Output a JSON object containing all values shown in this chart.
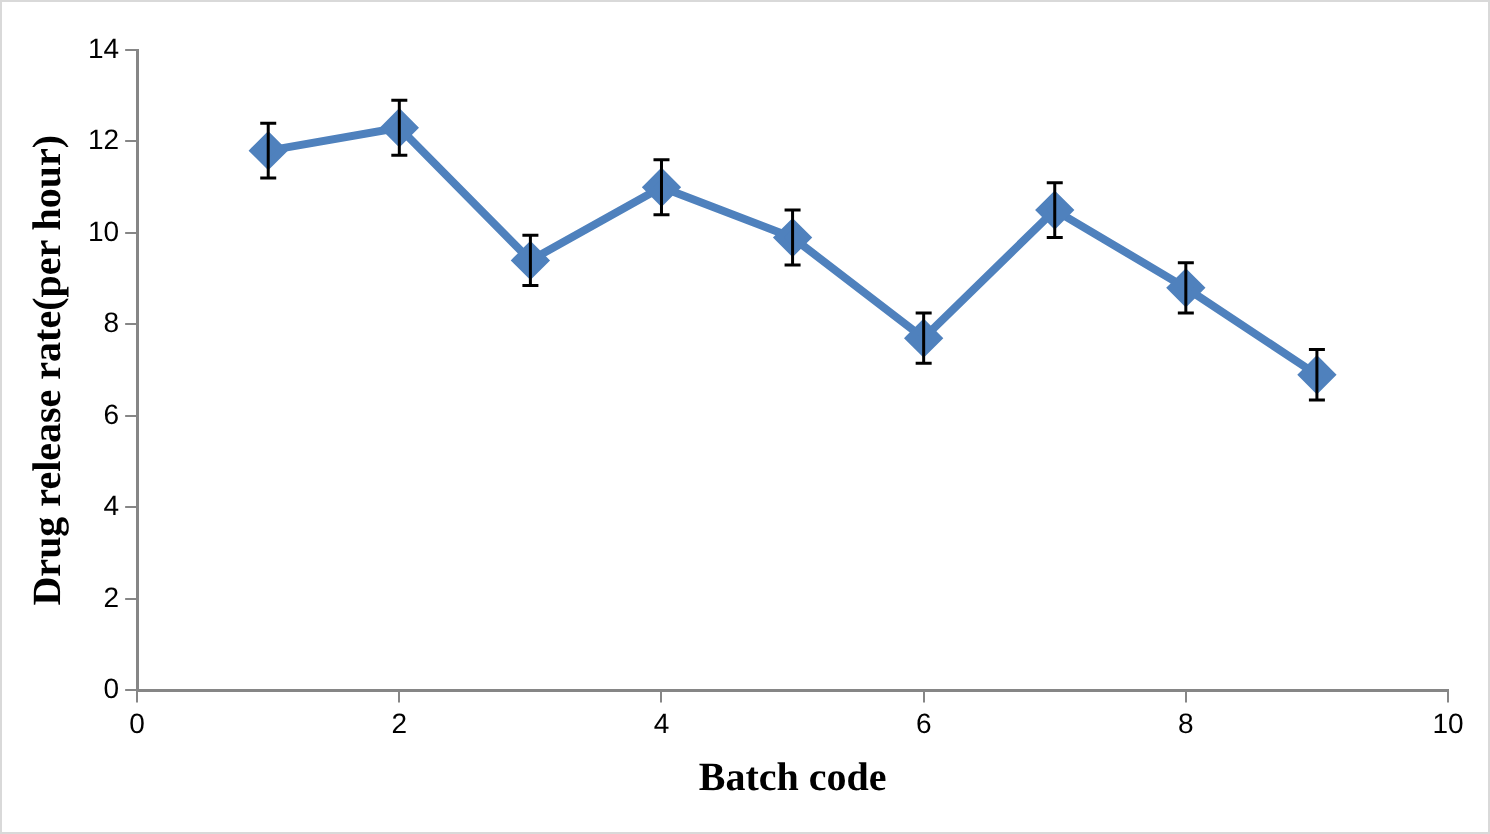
{
  "chart_data": {
    "type": "line",
    "xlabel": "Batch code",
    "ylabel": "Drug release rate(per hour)",
    "x": [
      1,
      2,
      3,
      4,
      5,
      6,
      7,
      8,
      9
    ],
    "series": [
      {
        "color": "#4f81bd",
        "values": [
          11.8,
          12.3,
          9.4,
          11.0,
          9.9,
          7.7,
          10.5,
          8.8,
          6.9
        ],
        "errors": [
          0.6,
          0.6,
          0.55,
          0.6,
          0.6,
          0.55,
          0.6,
          0.55,
          0.55
        ]
      }
    ],
    "xlim": [
      0,
      10
    ],
    "xticks": [
      0,
      2,
      4,
      6,
      8,
      10
    ],
    "ylim": [
      0,
      14
    ],
    "yticks": [
      0,
      2,
      4,
      6,
      8,
      10,
      12,
      14
    ],
    "grid": false,
    "legend": false,
    "marker": "diamond",
    "line_style": "solid"
  }
}
